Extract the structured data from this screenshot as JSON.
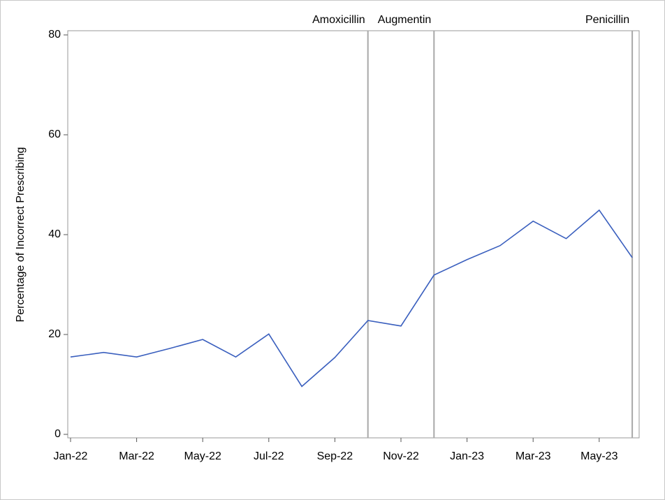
{
  "chart_data": {
    "type": "line",
    "ylabel": "Percentage of Incorrect Prescribing",
    "categories": [
      "Jan-22",
      null,
      "Mar-22",
      null,
      "May-22",
      null,
      "Jul-22",
      null,
      "Sep-22",
      null,
      "Nov-22",
      null,
      "Jan-23",
      null,
      "Mar-23",
      null,
      "May-23",
      null
    ],
    "series": [
      {
        "color": "#3a5fbe",
        "values": [
          15.5,
          16.4,
          15.5,
          17.2,
          19.0,
          15.5,
          20.1,
          9.6,
          15.4,
          22.8,
          21.7,
          31.9,
          35.0,
          37.8,
          42.7,
          39.2,
          44.9,
          35.4
        ]
      }
    ],
    "ylim": [
      0,
      80
    ],
    "yticks": [
      0,
      20,
      40,
      60,
      80
    ],
    "reference_lines": [
      {
        "label": "Amoxicillin",
        "index": 9
      },
      {
        "label": "Augmentin",
        "index": 11
      },
      {
        "label": "Penicillin",
        "index": 17
      }
    ],
    "reference_color": "#a8a8a8"
  }
}
